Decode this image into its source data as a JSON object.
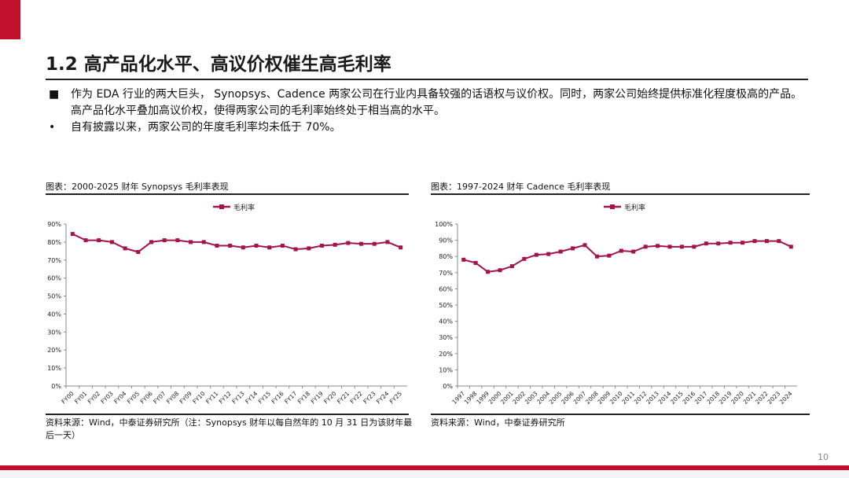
{
  "page": {
    "title": "1.2 高产品化水平、高议价权催生高毛利率",
    "bullets": [
      {
        "marker": "■",
        "text": "作为 EDA 行业的两大巨头， Synopsys、Cadence 两家公司在行业内具备较强的话语权与议价权。同时，两家公司始终提供标准化程度极高的产品。高产品化水平叠加高议价权，使得两家公司的毛利率始终处于相当高的水平。"
      },
      {
        "marker": "•",
        "text": "自有披露以来，两家公司的年度毛利率均未低于 70%。"
      }
    ],
    "page_number": "10",
    "accent_color": "#c0102d",
    "series_color": "#a3154a"
  },
  "chart_data": [
    {
      "type": "line",
      "caption": "图表：2000-2025 财年 Synopsys 毛利率表现",
      "legend": "毛利率",
      "legend_position": "top-center",
      "x": [
        "FY00",
        "FY01",
        "FY02",
        "FY03",
        "FY04",
        "FY05",
        "FY06",
        "FY07",
        "FY08",
        "FY09",
        "FY10",
        "FY11",
        "FY12",
        "FY13",
        "FY14",
        "FY15",
        "FY16",
        "FY17",
        "FY18",
        "FY19",
        "FY20",
        "FY21",
        "FY22",
        "FY23",
        "FY24",
        "FY25"
      ],
      "series": [
        {
          "name": "毛利率",
          "values": [
            84.5,
            81,
            81,
            80,
            76.5,
            74.5,
            80,
            81,
            81,
            80,
            80,
            78,
            78,
            77,
            78,
            77,
            78,
            76,
            76.5,
            78,
            78.5,
            79.5,
            79,
            79,
            80,
            77
          ]
        }
      ],
      "ylim": [
        0,
        90
      ],
      "yticks": [
        "0%",
        "10%",
        "20%",
        "30%",
        "40%",
        "50%",
        "60%",
        "70%",
        "80%",
        "90%"
      ],
      "grid": false,
      "source": "资料来源：Wind，中泰证券研究所（注：Synopsys 财年以每自然年的 10 月 31 日为该财年最后一天）"
    },
    {
      "type": "line",
      "caption": "图表：1997-2024 财年 Cadence 毛利率表现",
      "legend": "毛利率",
      "legend_position": "top-center",
      "x": [
        "1997",
        "1998",
        "1999",
        "2000",
        "2001",
        "2002",
        "2003",
        "2004",
        "2005",
        "2006",
        "2007",
        "2008",
        "2009",
        "2010",
        "2011",
        "2012",
        "2013",
        "2014",
        "2015",
        "2016",
        "2017",
        "2018",
        "2019",
        "2020",
        "2021",
        "2022",
        "2023",
        "2024"
      ],
      "series": [
        {
          "name": "毛利率",
          "values": [
            78,
            76,
            70.5,
            71.5,
            74,
            78.5,
            81,
            81.5,
            83,
            85,
            87,
            80,
            80.5,
            83.5,
            83,
            86,
            86.5,
            86,
            86,
            86,
            88,
            88,
            88.5,
            88.5,
            89.5,
            89.5,
            89.5,
            86
          ]
        }
      ],
      "ylim": [
        0,
        100
      ],
      "yticks": [
        "0%",
        "10%",
        "20%",
        "30%",
        "40%",
        "50%",
        "60%",
        "70%",
        "80%",
        "90%",
        "100%"
      ],
      "grid": false,
      "source": "资料来源：Wind，中泰证券研究所"
    }
  ]
}
